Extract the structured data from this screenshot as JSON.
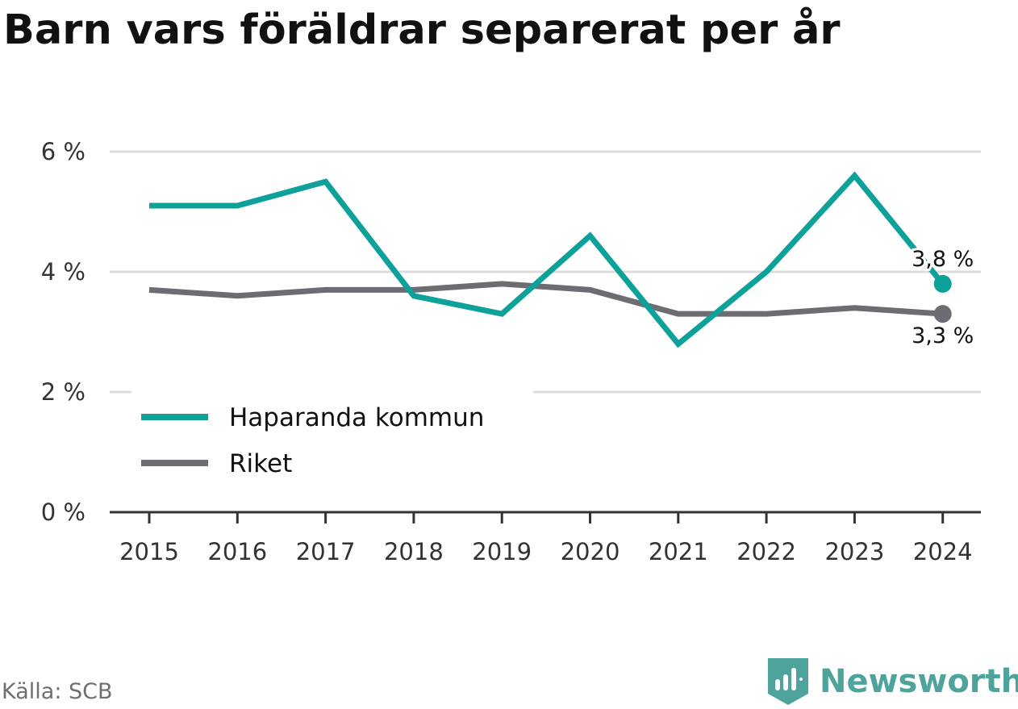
{
  "title": "Barn vars föräldrar separerat per år",
  "source": "Källa: SCB",
  "brand": {
    "name": "Newsworthy",
    "icon": "bar-chart-badge-icon",
    "color": "#4ea39d"
  },
  "chart_data": {
    "type": "line",
    "title": "Barn vars föräldrar separerat per år",
    "categories": [
      "2015",
      "2016",
      "2017",
      "2018",
      "2019",
      "2020",
      "2021",
      "2022",
      "2023",
      "2024"
    ],
    "series": [
      {
        "name": "Haparanda kommun",
        "color": "#0ea19a",
        "values": [
          5.1,
          5.1,
          5.5,
          3.6,
          3.3,
          4.6,
          2.8,
          4.0,
          5.6,
          3.8
        ],
        "end_label": "3,8 %"
      },
      {
        "name": "Riket",
        "color": "#6e6c73",
        "values": [
          3.7,
          3.6,
          3.7,
          3.7,
          3.8,
          3.7,
          3.3,
          3.3,
          3.4,
          3.3
        ],
        "end_label": "3,3 %"
      }
    ],
    "y_ticks": [
      0,
      2,
      4,
      6
    ],
    "y_tick_labels": [
      "0 %",
      "2 %",
      "4 %",
      "6 %"
    ],
    "ylim": [
      0,
      6
    ],
    "grid": true,
    "legend_position": "bottom-left"
  }
}
